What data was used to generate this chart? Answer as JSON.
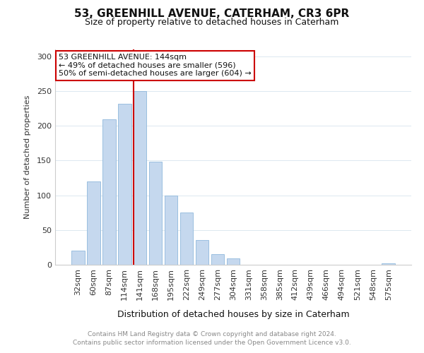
{
  "title1": "53, GREENHILL AVENUE, CATERHAM, CR3 6PR",
  "title2": "Size of property relative to detached houses in Caterham",
  "xlabel": "Distribution of detached houses by size in Caterham",
  "ylabel": "Number of detached properties",
  "categories": [
    "32sqm",
    "60sqm",
    "87sqm",
    "114sqm",
    "141sqm",
    "168sqm",
    "195sqm",
    "222sqm",
    "249sqm",
    "277sqm",
    "304sqm",
    "331sqm",
    "358sqm",
    "385sqm",
    "412sqm",
    "439sqm",
    "466sqm",
    "494sqm",
    "521sqm",
    "548sqm",
    "575sqm"
  ],
  "values": [
    20,
    120,
    209,
    232,
    250,
    148,
    100,
    75,
    36,
    15,
    9,
    0,
    0,
    0,
    0,
    0,
    0,
    0,
    0,
    0,
    2
  ],
  "bar_color": "#c5d8ee",
  "bar_edge_color": "#8fb8dc",
  "red_line_index": 4,
  "annotation_lines": [
    "53 GREENHILL AVENUE: 144sqm",
    "← 49% of detached houses are smaller (596)",
    "50% of semi-detached houses are larger (604) →"
  ],
  "ylim": [
    0,
    310
  ],
  "yticks": [
    0,
    50,
    100,
    150,
    200,
    250,
    300
  ],
  "footer1": "Contains HM Land Registry data © Crown copyright and database right 2024.",
  "footer2": "Contains public sector information licensed under the Open Government Licence v3.0.",
  "grid_color": "#dce8f0",
  "annotation_box_facecolor": "#ffffff",
  "annotation_box_edgecolor": "#cc0000",
  "red_line_color": "#cc0000",
  "title1_fontsize": 11,
  "title2_fontsize": 9,
  "ylabel_fontsize": 8,
  "xlabel_fontsize": 9,
  "tick_fontsize": 8,
  "footer_fontsize": 6.5,
  "annot_fontsize": 8
}
